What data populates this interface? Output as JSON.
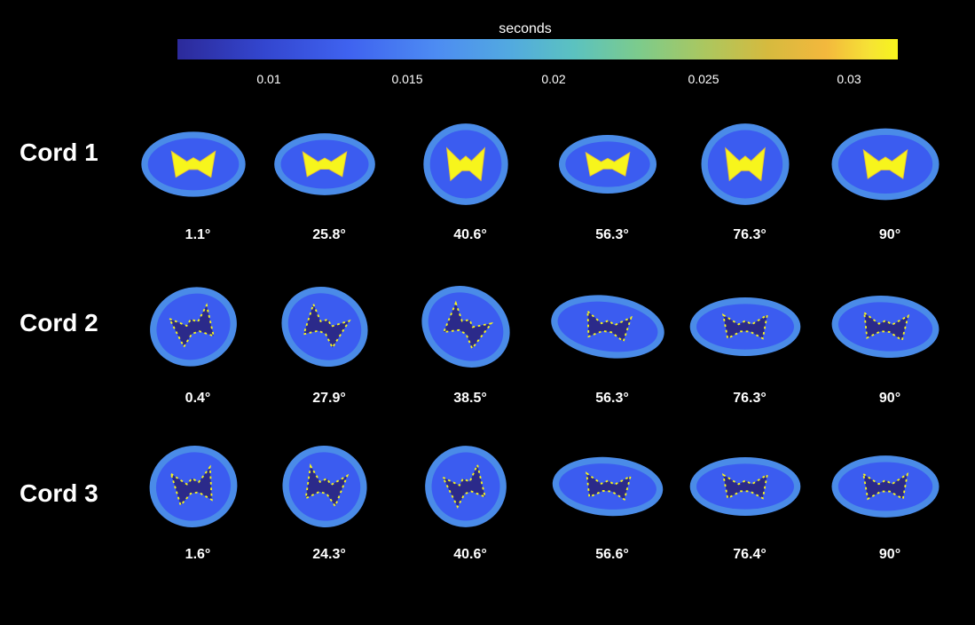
{
  "colorbar": {
    "title": "seconds",
    "ticks": [
      "0.01",
      "0.015",
      "0.02",
      "0.025",
      "0.03"
    ]
  },
  "rows": [
    {
      "label": "Cord 1",
      "angles": [
        "1.1°",
        "25.8°",
        "40.6°",
        "56.3°",
        "76.3°",
        "90°"
      ]
    },
    {
      "label": "Cord 2",
      "angles": [
        "0.4°",
        "27.9°",
        "38.5°",
        "56.3°",
        "76.3°",
        "90°"
      ]
    },
    {
      "label": "Cord 3",
      "angles": [
        "1.6°",
        "24.3°",
        "40.6°",
        "56.6°",
        "76.4°",
        "90°"
      ]
    }
  ],
  "colors": {
    "background": "#000000",
    "tissue": "#3b5cf0",
    "tissue_outer": "#4a8be8",
    "grey_matter_bright": "#f7f51c",
    "grey_matter_dark": "#2b2a8a"
  }
}
